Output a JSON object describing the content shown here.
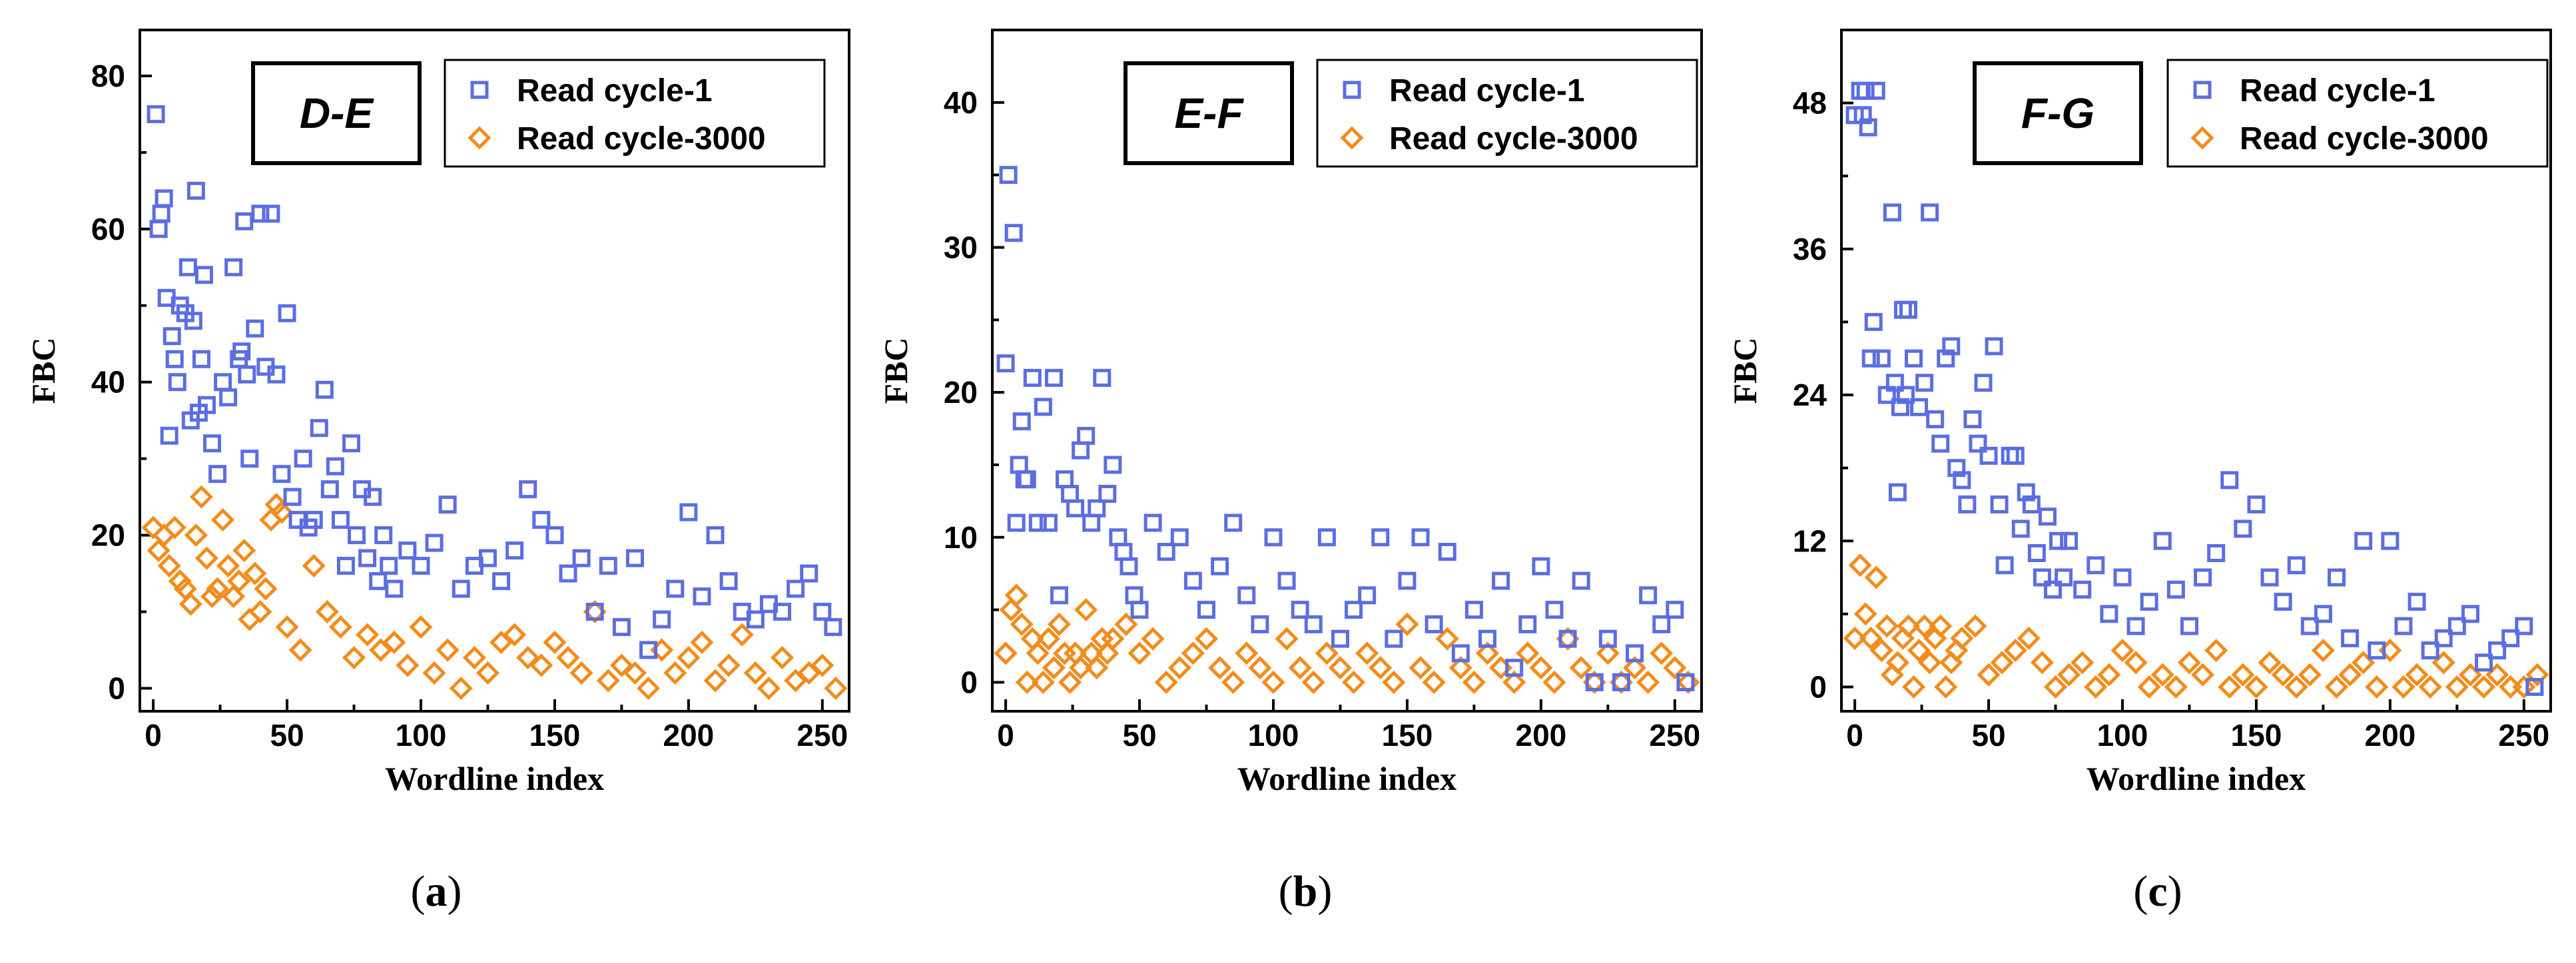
{
  "colors": {
    "series1": "#5b6ee1",
    "series2": "#f28c1c",
    "axis": "#000000"
  },
  "chart_data": [
    {
      "type": "scatter",
      "panel_title": "D-E",
      "caption": "a",
      "xlabel": "Wordline index",
      "ylabel": "FBC",
      "xlim": [
        -5,
        260
      ],
      "ylim": [
        -3,
        86
      ],
      "xticks": [
        0,
        50,
        100,
        150,
        200,
        250
      ],
      "yticks": [
        0,
        20,
        40,
        60,
        80
      ],
      "legend_position": "top-right",
      "series": [
        {
          "name": "Read cycle-1",
          "marker": "square",
          "x": [
            1,
            2,
            3,
            4,
            5,
            6,
            7,
            8,
            9,
            10,
            12,
            13,
            14,
            15,
            16,
            17,
            18,
            19,
            20,
            22,
            24,
            26,
            28,
            30,
            32,
            33,
            34,
            35,
            36,
            38,
            40,
            42,
            44,
            46,
            48,
            50,
            52,
            54,
            56,
            58,
            60,
            62,
            64,
            66,
            68,
            70,
            72,
            74,
            76,
            78,
            80,
            82,
            84,
            86,
            88,
            90,
            95,
            100,
            105,
            110,
            115,
            120,
            125,
            130,
            135,
            140,
            145,
            150,
            155,
            160,
            165,
            170,
            175,
            180,
            185,
            190,
            195,
            200,
            205,
            210,
            215,
            220,
            225,
            230,
            235,
            240,
            245,
            250,
            254
          ],
          "y": [
            75,
            60,
            62,
            64,
            51,
            33,
            46,
            43,
            40,
            50,
            49,
            55,
            35,
            48,
            65,
            36,
            43,
            54,
            37,
            32,
            28,
            40,
            38,
            55,
            43,
            44,
            61,
            41,
            30,
            47,
            62,
            42,
            62,
            41,
            28,
            49,
            25,
            22,
            30,
            21,
            22,
            34,
            39,
            26,
            29,
            22,
            16,
            32,
            20,
            26,
            17,
            25,
            14,
            20,
            16,
            13,
            18,
            16,
            19,
            24,
            13,
            16,
            17,
            14,
            18,
            26,
            22,
            20,
            15,
            17,
            10,
            16,
            8,
            17,
            5,
            9,
            13,
            23,
            12,
            20,
            14,
            10,
            9,
            11,
            10,
            13,
            15,
            10,
            8
          ]
        },
        {
          "name": "Read cycle-3000",
          "marker": "diamond",
          "x": [
            0,
            2,
            4,
            6,
            8,
            10,
            12,
            14,
            16,
            18,
            20,
            22,
            24,
            26,
            28,
            30,
            32,
            34,
            36,
            38,
            40,
            42,
            44,
            46,
            48,
            50,
            55,
            60,
            65,
            70,
            75,
            80,
            85,
            90,
            95,
            100,
            105,
            110,
            115,
            120,
            125,
            130,
            135,
            140,
            145,
            150,
            155,
            160,
            165,
            170,
            175,
            180,
            185,
            190,
            195,
            200,
            205,
            210,
            215,
            220,
            225,
            230,
            235,
            240,
            245,
            250,
            255
          ],
          "y": [
            21,
            18,
            20,
            16,
            21,
            14,
            13,
            11,
            20,
            25,
            17,
            12,
            13,
            22,
            16,
            12,
            14,
            18,
            9,
            15,
            10,
            13,
            22,
            24,
            23,
            8,
            5,
            16,
            10,
            8,
            4,
            7,
            5,
            6,
            3,
            8,
            2,
            5,
            0,
            4,
            2,
            6,
            7,
            4,
            3,
            6,
            4,
            2,
            10,
            1,
            3,
            2,
            0,
            5,
            2,
            4,
            6,
            1,
            3,
            7,
            2,
            0,
            4,
            1,
            2,
            3,
            0
          ]
        }
      ]
    },
    {
      "type": "scatter",
      "panel_title": "E-F",
      "caption": "b",
      "xlabel": "Wordline index",
      "ylabel": "FBC",
      "xlim": [
        -5,
        260
      ],
      "ylim": [
        -2,
        45
      ],
      "xticks": [
        0,
        50,
        100,
        150,
        200,
        250
      ],
      "yticks": [
        0,
        10,
        20,
        30,
        40
      ],
      "legend_position": "top-right",
      "series": [
        {
          "name": "Read cycle-1",
          "marker": "square",
          "x": [
            0,
            1,
            3,
            4,
            5,
            6,
            7,
            8,
            10,
            12,
            14,
            16,
            18,
            20,
            22,
            24,
            26,
            28,
            30,
            32,
            34,
            36,
            38,
            40,
            42,
            44,
            46,
            48,
            50,
            55,
            60,
            65,
            70,
            75,
            80,
            85,
            90,
            95,
            100,
            105,
            110,
            115,
            120,
            125,
            130,
            135,
            140,
            145,
            150,
            155,
            160,
            165,
            170,
            175,
            180,
            185,
            190,
            195,
            200,
            205,
            210,
            215,
            220,
            225,
            230,
            235,
            240,
            245,
            250,
            254
          ],
          "y": [
            22,
            35,
            31,
            11,
            15,
            18,
            14,
            14,
            21,
            11,
            19,
            11,
            21,
            6,
            14,
            13,
            12,
            16,
            17,
            11,
            12,
            21,
            13,
            15,
            10,
            9,
            8,
            6,
            5,
            11,
            9,
            10,
            7,
            5,
            8,
            11,
            6,
            4,
            10,
            7,
            5,
            4,
            10,
            3,
            5,
            6,
            10,
            3,
            7,
            10,
            4,
            9,
            2,
            5,
            3,
            7,
            1,
            4,
            8,
            5,
            3,
            7,
            0,
            3,
            0,
            2,
            6,
            4,
            5,
            0
          ]
        },
        {
          "name": "Read cycle-3000",
          "marker": "diamond",
          "x": [
            0,
            2,
            4,
            6,
            8,
            10,
            12,
            14,
            16,
            18,
            20,
            22,
            24,
            26,
            28,
            30,
            32,
            34,
            36,
            38,
            40,
            45,
            50,
            55,
            60,
            65,
            70,
            75,
            80,
            85,
            90,
            95,
            100,
            105,
            110,
            115,
            120,
            125,
            130,
            135,
            140,
            145,
            150,
            155,
            160,
            165,
            170,
            175,
            180,
            185,
            190,
            195,
            200,
            205,
            210,
            215,
            220,
            225,
            230,
            235,
            240,
            245,
            250,
            255
          ],
          "y": [
            2,
            5,
            6,
            4,
            0,
            3,
            2,
            0,
            3,
            1,
            4,
            2,
            0,
            2,
            1,
            5,
            2,
            1,
            3,
            2,
            3,
            4,
            2,
            3,
            0,
            1,
            2,
            3,
            1,
            0,
            2,
            1,
            0,
            3,
            1,
            0,
            2,
            1,
            0,
            2,
            1,
            0,
            4,
            1,
            0,
            3,
            1,
            0,
            2,
            1,
            0,
            2,
            1,
            0,
            3,
            1,
            0,
            2,
            0,
            1,
            0,
            2,
            1,
            0
          ]
        }
      ]
    },
    {
      "type": "scatter",
      "panel_title": "F-G",
      "caption": "c",
      "xlabel": "Wordline index",
      "ylabel": "FBC",
      "xlim": [
        -5,
        260
      ],
      "ylim": [
        -2,
        54
      ],
      "xticks": [
        0,
        50,
        100,
        150,
        200,
        250
      ],
      "yticks": [
        0,
        12,
        24,
        36,
        48
      ],
      "legend_position": "top-right",
      "series": [
        {
          "name": "Read cycle-1",
          "marker": "square",
          "x": [
            0,
            2,
            3,
            4,
            5,
            6,
            7,
            8,
            10,
            12,
            14,
            15,
            16,
            17,
            18,
            19,
            20,
            22,
            24,
            26,
            28,
            30,
            32,
            34,
            36,
            38,
            40,
            42,
            44,
            46,
            48,
            50,
            52,
            54,
            56,
            58,
            60,
            62,
            64,
            66,
            68,
            70,
            72,
            74,
            76,
            78,
            80,
            85,
            90,
            95,
            100,
            105,
            110,
            115,
            120,
            125,
            130,
            135,
            140,
            145,
            150,
            155,
            160,
            165,
            170,
            175,
            180,
            185,
            190,
            195,
            200,
            205,
            210,
            215,
            220,
            225,
            230,
            235,
            240,
            245,
            250,
            254
          ],
          "y": [
            47,
            49,
            47,
            49,
            46,
            27,
            30,
            49,
            27,
            24,
            39,
            25,
            16,
            23,
            31,
            24,
            31,
            27,
            23,
            25,
            39,
            22,
            20,
            27,
            28,
            18,
            17,
            15,
            22,
            20,
            25,
            19,
            28,
            15,
            10,
            19,
            19,
            13,
            16,
            15,
            11,
            9,
            14,
            8,
            12,
            9,
            12,
            8,
            10,
            6,
            9,
            5,
            7,
            12,
            8,
            5,
            9,
            11,
            17,
            13,
            15,
            9,
            7,
            10,
            5,
            6,
            9,
            4,
            12,
            3,
            12,
            5,
            7,
            3,
            4,
            5,
            6,
            2,
            3,
            4,
            5,
            0
          ]
        },
        {
          "name": "Read cycle-3000",
          "marker": "diamond",
          "x": [
            0,
            2,
            4,
            6,
            8,
            10,
            12,
            14,
            16,
            18,
            20,
            22,
            24,
            26,
            28,
            30,
            32,
            34,
            36,
            38,
            40,
            45,
            50,
            55,
            60,
            65,
            70,
            75,
            80,
            85,
            90,
            95,
            100,
            105,
            110,
            115,
            120,
            125,
            130,
            135,
            140,
            145,
            150,
            155,
            160,
            165,
            170,
            175,
            180,
            185,
            190,
            195,
            200,
            205,
            210,
            215,
            220,
            225,
            230,
            235,
            240,
            245,
            250,
            255
          ],
          "y": [
            4,
            10,
            6,
            4,
            9,
            3,
            5,
            1,
            2,
            4,
            5,
            0,
            3,
            5,
            2,
            4,
            5,
            0,
            2,
            3,
            4,
            5,
            1,
            2,
            3,
            4,
            2,
            0,
            1,
            2,
            0,
            1,
            3,
            2,
            0,
            1,
            0,
            2,
            1,
            3,
            0,
            1,
            0,
            2,
            1,
            0,
            1,
            3,
            0,
            1,
            2,
            0,
            3,
            0,
            1,
            0,
            2,
            0,
            1,
            0,
            1,
            0,
            0,
            1
          ]
        }
      ]
    }
  ]
}
